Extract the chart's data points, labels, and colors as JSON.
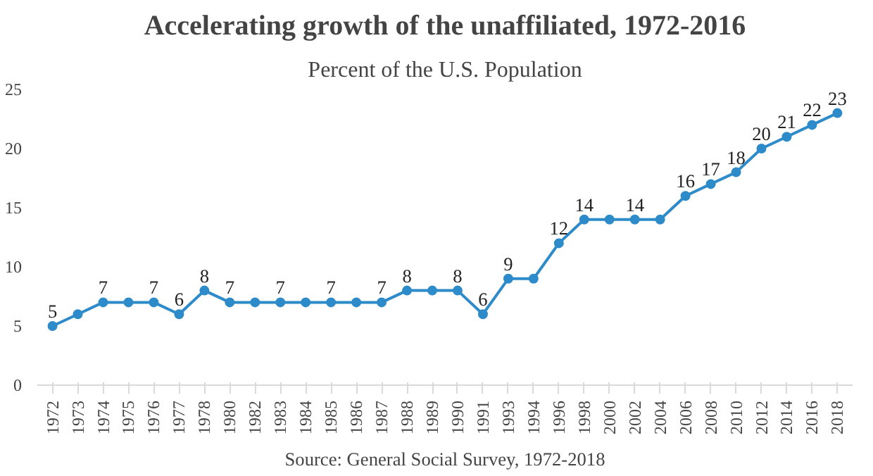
{
  "chart_data": {
    "type": "line",
    "title": "Accelerating growth of the unaffiliated, 1972-2016",
    "subtitle": "Percent of the U.S. Population",
    "categories": [
      "1972",
      "1973",
      "1974",
      "1975",
      "1976",
      "1977",
      "1978",
      "1980",
      "1982",
      "1983",
      "1984",
      "1985",
      "1986",
      "1987",
      "1988",
      "1989",
      "1990",
      "1991",
      "1993",
      "1994",
      "1996",
      "1998",
      "2000",
      "2002",
      "2004",
      "2006",
      "2008",
      "2010",
      "2012",
      "2014",
      "2016",
      "2018"
    ],
    "values": [
      5,
      6,
      7,
      7,
      7,
      6,
      8,
      7,
      7,
      7,
      7,
      7,
      7,
      7,
      8,
      8,
      8,
      6,
      9,
      9,
      12,
      14,
      14,
      14,
      14,
      16,
      17,
      18,
      20,
      21,
      22,
      23
    ],
    "value_labels": [
      "5",
      null,
      "7",
      null,
      "7",
      "6",
      "8",
      "7",
      null,
      "7",
      null,
      "7",
      null,
      "7",
      "8",
      null,
      "8",
      "6",
      "9",
      null,
      "12",
      "14",
      null,
      "14",
      null,
      "16",
      "17",
      "18",
      "20",
      "21",
      "22",
      "23"
    ],
    "color": "#2e8bc9",
    "marker": "circle",
    "line_style": "solid",
    "grid": false,
    "ylim": [
      0,
      25
    ],
    "yticks": [
      0,
      5,
      10,
      15,
      20,
      25
    ],
    "annotations": [
      "Source: General Social Survey, 1972-2018"
    ]
  }
}
